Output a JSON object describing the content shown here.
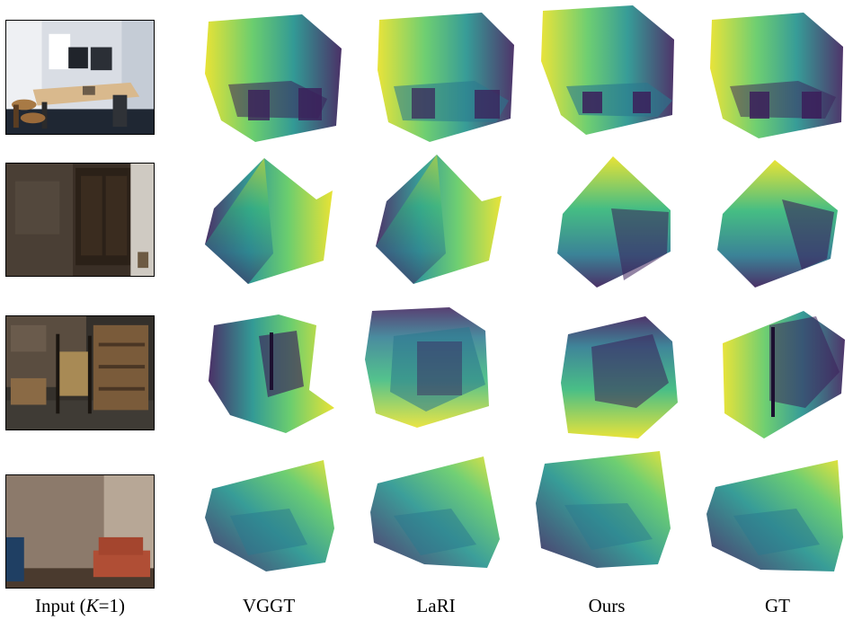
{
  "columns": {
    "input": {
      "prefix": "Input (",
      "var": "K",
      "suffix": "=1)"
    },
    "vggt": "VGGT",
    "lari": "LaRI",
    "ours": "Ours",
    "gt": "GT"
  },
  "colors": {
    "viridis_dark": "#3b1f5a",
    "viridis_mid": "#2a788e",
    "viridis_green": "#35b779",
    "viridis_yellow": "#e6e024"
  }
}
